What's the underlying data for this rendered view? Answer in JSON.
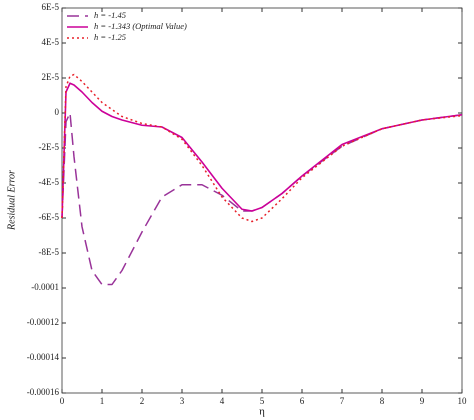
{
  "chart_data": {
    "type": "line",
    "xlabel": "η",
    "ylabel": "Residual Error",
    "x": [
      0,
      0.1,
      0.2,
      0.3,
      0.5,
      0.75,
      1,
      1.25,
      1.5,
      2,
      2.5,
      3,
      3.5,
      4,
      4.5,
      4.75,
      5,
      5.5,
      6,
      7,
      8,
      9,
      10
    ],
    "series": [
      {
        "name": "h = -1.45",
        "color": "#993399",
        "dash": "12,6",
        "values": [
          -6e-05,
          -5e-06,
          0,
          -2.5e-05,
          -6.5e-05,
          -9e-05,
          -9.8e-05,
          -9.8e-05,
          -9e-05,
          -6.8e-05,
          -4.8e-05,
          -4.1e-05,
          -4.1e-05,
          -4.7e-05,
          -5.6e-05,
          -5.6e-05,
          -5.4e-05,
          -4.6e-05,
          -3.6e-05,
          -1.9e-05,
          -9e-06,
          -4e-06,
          -1e-06
        ]
      },
      {
        "name": "h = -1.343 (Optimal Value)",
        "color": "#cc0099",
        "dash": "none",
        "values": [
          -6e-05,
          1.2e-05,
          1.7e-05,
          1.6e-05,
          1.2e-05,
          6e-06,
          1e-06,
          -2e-06,
          -4e-06,
          -7e-06,
          -8e-06,
          -1.4e-05,
          -2.8e-05,
          -4.3e-05,
          -5.5e-05,
          -5.6e-05,
          -5.4e-05,
          -4.6e-05,
          -3.6e-05,
          -1.8e-05,
          -9e-06,
          -4e-06,
          -1e-06
        ]
      },
      {
        "name": "h = -1.25",
        "color": "#e8202a",
        "dash": "2,3",
        "values": [
          -6e-05,
          1.5e-05,
          2.1e-05,
          2.2e-05,
          1.8e-05,
          1.2e-05,
          6e-06,
          2e-06,
          -2e-06,
          -6e-06,
          -8e-06,
          -1.5e-05,
          -3e-05,
          -4.8e-05,
          -6e-05,
          -6.2e-05,
          -6e-05,
          -4.9e-05,
          -3.7e-05,
          -1.9e-05,
          -9e-06,
          -4e-06,
          -1.5e-06
        ]
      }
    ],
    "xlim": [
      0,
      10
    ],
    "xticks": [
      0,
      1,
      2,
      3,
      4,
      5,
      6,
      7,
      8,
      9,
      10
    ],
    "ylim": [
      -0.00016,
      6e-05
    ],
    "yticks": [
      {
        "value": 6e-05,
        "label": "6E-5"
      },
      {
        "value": 4e-05,
        "label": "4E-5"
      },
      {
        "value": 2e-05,
        "label": "2E-5"
      },
      0,
      {
        "value": -2e-05,
        "label": "-2E-5"
      },
      {
        "value": -4e-05,
        "label": "-4E-5"
      },
      {
        "value": -6e-05,
        "label": "-6E-5"
      },
      {
        "value": -8e-05,
        "label": "-8E-5"
      },
      {
        "value": -0.0001,
        "label": "-0.0001"
      },
      {
        "value": -0.00012,
        "label": "-0.00012"
      },
      {
        "value": -0.00014,
        "label": "-0.00014"
      },
      {
        "value": -0.00016,
        "label": "-0.00016"
      }
    ],
    "legend": "upper-left"
  }
}
